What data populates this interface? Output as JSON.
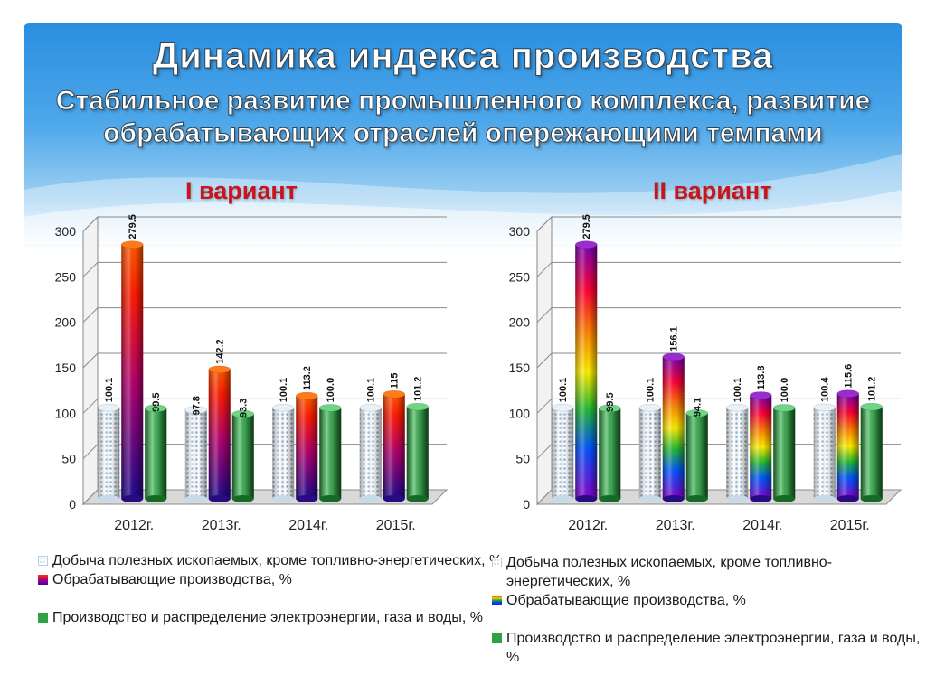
{
  "title": "Динамика индекса производства",
  "subtitle_line1": "Стабильное развитие промышленного комплекса, развитие",
  "subtitle_line2": "обрабатывающих отраслей опережающими темпами",
  "colors": {
    "mining": "#b9d3ea",
    "manufacturing": "#c0007a",
    "utilities": "#2fa344",
    "variant_title": "#c8151b"
  },
  "charts": [
    {
      "variant_title": "I вариант",
      "gradient": "fire",
      "legend": [
        "Добыча полезных ископаемых, кроме топливно-энергетических, %",
        "Обрабатывающие производства, %",
        "Производство и распределение электроэнергии, газа и воды, %"
      ]
    },
    {
      "variant_title": "II  вариант",
      "gradient": "rainbow",
      "legend": [
        "Добыча полезных ископаемых, кроме топливно-энергетических, %",
        "Обрабатывающие производства, %",
        "Производство и распределение электроэнергии, газа и воды, %"
      ]
    }
  ],
  "chart_data": [
    {
      "type": "bar",
      "categories": [
        "2012г.",
        "2013г.",
        "2014г.",
        "2015г."
      ],
      "ylim": [
        0,
        300
      ],
      "yticks": [
        0,
        50,
        100,
        150,
        200,
        250,
        300
      ],
      "grid": true,
      "legend_position": "bottom",
      "series": [
        {
          "name": "Добыча полезных ископаемых, кроме топливно-энергетических, %",
          "values": [
            100.1,
            97.8,
            100.1,
            100.1
          ],
          "labels": [
            "100.1",
            "97.8",
            "100.1",
            "100.1"
          ]
        },
        {
          "name": "Обрабатывающие производства, %",
          "values": [
            279.5,
            142.2,
            113.2,
            115
          ],
          "labels": [
            "279.5",
            "142.2",
            "113.2",
            "115"
          ]
        },
        {
          "name": "Производство и распределение электроэнергии, газа и воды, %",
          "values": [
            99.5,
            93.3,
            100.0,
            101.2
          ],
          "labels": [
            "99.5",
            "93.3",
            "100.0",
            "101.2"
          ]
        }
      ]
    },
    {
      "type": "bar",
      "categories": [
        "2012г.",
        "2013г.",
        "2014г.",
        "2015г."
      ],
      "ylim": [
        0,
        300
      ],
      "yticks": [
        0,
        50,
        100,
        150,
        200,
        250,
        300
      ],
      "grid": true,
      "legend_position": "bottom",
      "series": [
        {
          "name": "Добыча полезных ископаемых, кроме топливно-энергетических, %",
          "values": [
            100.1,
            100.1,
            100.1,
            100.4
          ],
          "labels": [
            "100.1",
            "100.1",
            "100.1",
            "100.4"
          ]
        },
        {
          "name": "Обрабатывающие производства, %",
          "values": [
            279.5,
            156.1,
            113.8,
            115.6
          ],
          "labels": [
            "279.5",
            "156.1",
            "113.8",
            "115.6"
          ]
        },
        {
          "name": "Производство и распределение электроэнергии, газа и воды, %",
          "values": [
            99.5,
            94.1,
            100.0,
            101.2
          ],
          "labels": [
            "99.5",
            "94.1",
            "100.0",
            "101.2"
          ]
        }
      ]
    }
  ]
}
